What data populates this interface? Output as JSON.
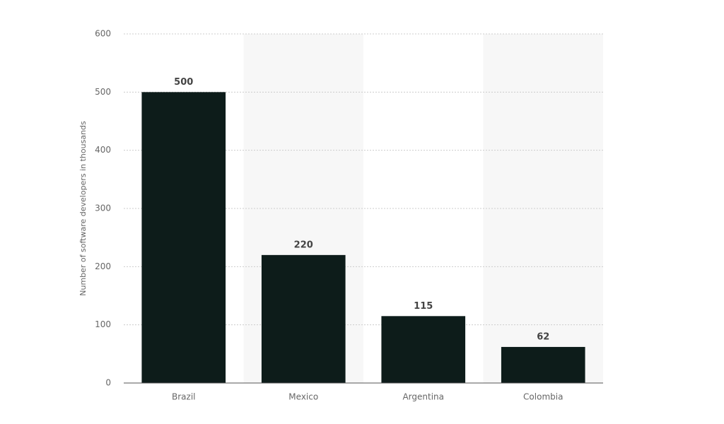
{
  "chart_data": {
    "type": "bar",
    "y_label": "Number of software developers in thousands",
    "categories": [
      "Brazil",
      "Mexico",
      "Argentina",
      "Colombia"
    ],
    "values": [
      500,
      220,
      115,
      62
    ],
    "color": "#0d1c1a",
    "ylim": [
      0,
      600
    ],
    "yticks": [
      0,
      100,
      200,
      300,
      400,
      500,
      600
    ],
    "grid": true
  }
}
